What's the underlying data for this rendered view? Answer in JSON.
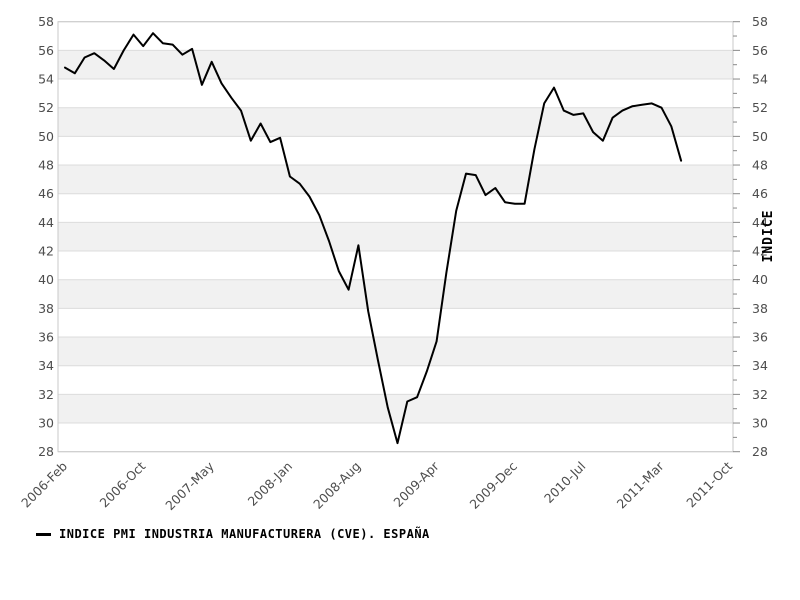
{
  "chart_data": {
    "type": "line",
    "title": "",
    "right_axis_title": "INDICE",
    "legend_label": "INDICE PMI INDUSTRIA MANUFACTURERA (CVE). ESPAÑA",
    "legend_position": "bottom-left",
    "grid": "horizontal-alternating-bands",
    "ylim": [
      28,
      58
    ],
    "y_tick_step": 2,
    "y_minor_tick_step": 1,
    "x_total_months": 68,
    "x_start_month": "2006-02",
    "x_tick_labels": [
      "2006-Feb",
      "2006-Oct",
      "2007-May",
      "2008-Jan",
      "2008-Aug",
      "2009-Apr",
      "2009-Dec",
      "2010-Jul",
      "2011-Mar",
      "2011-Oct"
    ],
    "x_tick_month_offsets": [
      0,
      8,
      15,
      23,
      30,
      38,
      46,
      53,
      61,
      68
    ],
    "series": [
      {
        "name": "INDICE PMI INDUSTRIA MANUFACTURERA (CVE). ESPAÑA",
        "frequency": "monthly",
        "start_month": "2006-02",
        "values": [
          54.8,
          54.4,
          55.5,
          55.8,
          55.3,
          54.7,
          56.0,
          57.1,
          56.3,
          57.2,
          56.5,
          56.4,
          55.7,
          56.1,
          53.6,
          55.2,
          53.7,
          52.7,
          51.8,
          49.7,
          50.9,
          49.6,
          49.9,
          47.2,
          46.7,
          45.8,
          44.5,
          42.7,
          40.6,
          39.3,
          42.4,
          37.8,
          34.4,
          31.1,
          28.6,
          31.5,
          31.8,
          33.6,
          35.7,
          40.5,
          44.8,
          47.4,
          47.3,
          45.9,
          46.4,
          45.4,
          45.3,
          45.3,
          49.1,
          52.3,
          53.4,
          51.8,
          51.5,
          51.6,
          50.3,
          49.7,
          51.3,
          51.8,
          52.1,
          52.2,
          52.3,
          52.0,
          50.7,
          48.3
        ]
      }
    ],
    "colors": {
      "line": "#000000",
      "band": "#f1f1f1",
      "gridline": "#dcdcdc",
      "plot_border": "#c9c9c9",
      "tick": "#888888",
      "tick_label": "#4d4d4d",
      "axis_title": "#000000"
    }
  }
}
